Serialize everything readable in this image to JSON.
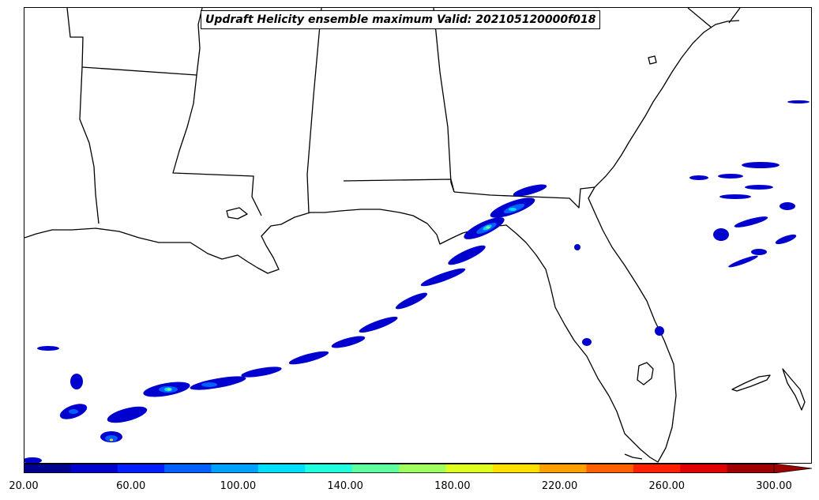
{
  "title": "Updraft Helicity ensemble maximum Valid: 202105120000f018",
  "colorbar": {
    "colors": [
      "#00008f",
      "#0000cf",
      "#0020ff",
      "#0060ff",
      "#00a0ff",
      "#00dfff",
      "#20ffdf",
      "#60ff9f",
      "#9fff60",
      "#dfff20",
      "#ffdf00",
      "#ff9f00",
      "#ff6000",
      "#ff2000",
      "#df0000",
      "#9f0000"
    ],
    "min": 20,
    "max": 300,
    "step": 20,
    "tick_labels": [
      "20.00",
      "60.00",
      "100.00",
      "140.00",
      "180.00",
      "220.00",
      "260.00",
      "300.00"
    ],
    "extend": "max"
  },
  "map": {
    "land_fill": "#ffffff",
    "line_color": "#000000",
    "features": [
      "coastline",
      "state-borders"
    ],
    "region": "US Gulf Coast and Southeast"
  }
}
